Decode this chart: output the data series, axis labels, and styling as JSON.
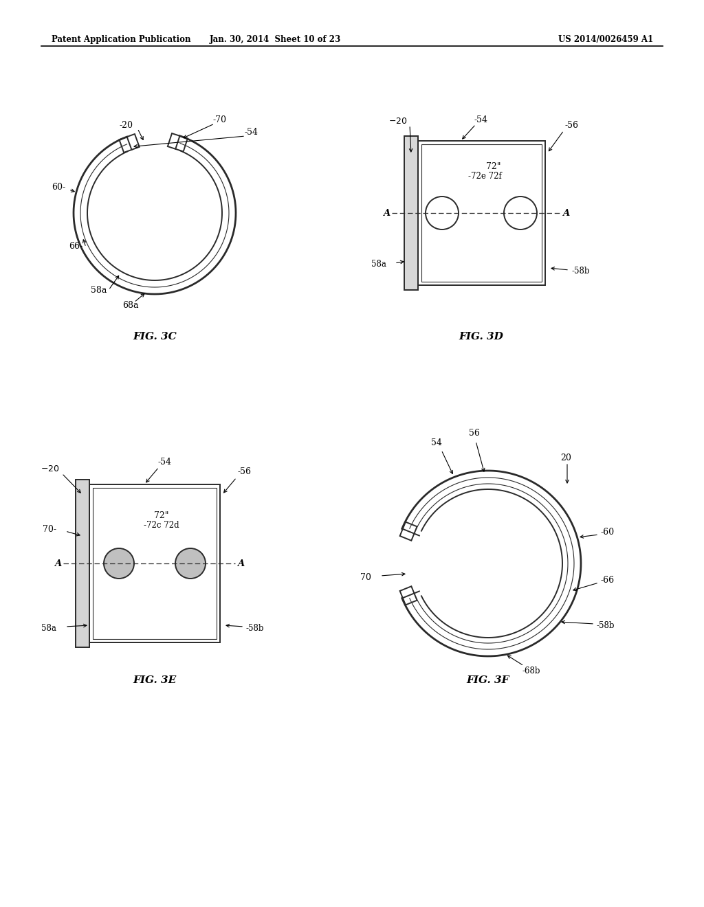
{
  "header_left": "Patent Application Publication",
  "header_mid": "Jan. 30, 2014  Sheet 10 of 23",
  "header_right": "US 2014/0026459 A1",
  "fig3c_label": "FIG. 3C",
  "fig3d_label": "FIG. 3D",
  "fig3e_label": "FIG. 3E",
  "fig3f_label": "FIG. 3F",
  "bg_color": "#ffffff",
  "line_color": "#2a2a2a"
}
